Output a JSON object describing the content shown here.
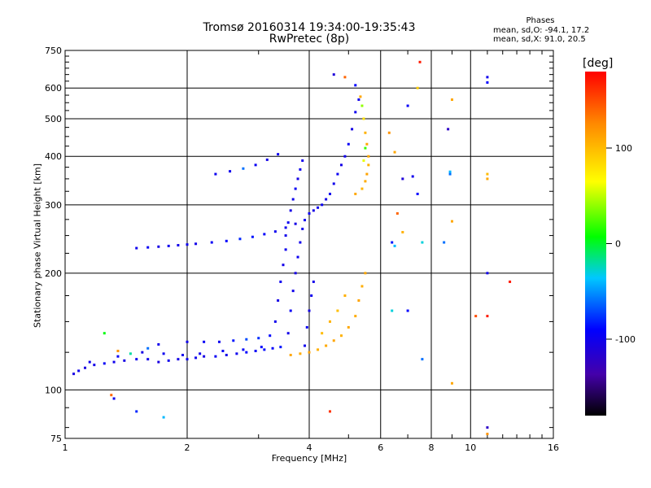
{
  "header": {
    "title_line1": "Tromsø 20160314 19:34:00-19:35:43",
    "title_line2": "RwPretec (8p)"
  },
  "stats": {
    "heading": "Phases",
    "line1": "mean, sd,O: -94.1, 17.2",
    "line2": "mean, sd,X:  91.0, 20.5"
  },
  "colorbar": {
    "label": "[deg]",
    "min": -180,
    "max": 180,
    "ticks": [
      {
        "value": 100,
        "label": "100"
      },
      {
        "value": 0,
        "label": "0"
      },
      {
        "value": -100,
        "label": "-100"
      }
    ]
  },
  "chart_data": {
    "type": "scatter",
    "xlabel": "Frequency [MHz]",
    "ylabel": "Stationary phase Virtual Height [km]",
    "xscale": "log",
    "yscale": "log",
    "xlim": [
      1,
      16
    ],
    "ylim": [
      75,
      750
    ],
    "xticks": [
      {
        "value": 1,
        "label": "1"
      },
      {
        "value": 2,
        "label": "2"
      },
      {
        "value": 4,
        "label": "4"
      },
      {
        "value": 6,
        "label": "6"
      },
      {
        "value": 8,
        "label": "8"
      },
      {
        "value": 10,
        "label": "10"
      },
      {
        "value": 16,
        "label": "16"
      }
    ],
    "yticks": [
      {
        "value": 75,
        "label": "75"
      },
      {
        "value": 100,
        "label": "100"
      },
      {
        "value": 200,
        "label": "200"
      },
      {
        "value": 300,
        "label": "300"
      },
      {
        "value": 400,
        "label": "400"
      },
      {
        "value": 500,
        "label": "500"
      },
      {
        "value": 600,
        "label": "600"
      },
      {
        "value": 750,
        "label": "750"
      }
    ],
    "grid_x": [
      2,
      4,
      6,
      8,
      10
    ],
    "grid_y": [
      100,
      200,
      300,
      400,
      500,
      600
    ],
    "minor_x": [
      3,
      5,
      7,
      9,
      11,
      12,
      13,
      14,
      15
    ],
    "minor_y": [
      80,
      90,
      125,
      150,
      175,
      225,
      250,
      275,
      325,
      350,
      375,
      425,
      450,
      475,
      525,
      550,
      575,
      625,
      650,
      675,
      700,
      725
    ],
    "series": [
      {
        "color_by": "phase_deg",
        "points": [
          [
            1.05,
            110,
            -105
          ],
          [
            1.08,
            112,
            -100
          ],
          [
            1.12,
            114,
            -108
          ],
          [
            1.18,
            116,
            -102
          ],
          [
            1.25,
            117,
            -95
          ],
          [
            1.32,
            118,
            -100
          ],
          [
            1.4,
            119,
            -104
          ],
          [
            1.5,
            120,
            -98
          ],
          [
            1.6,
            120,
            -101
          ],
          [
            1.7,
            118,
            -106
          ],
          [
            1.8,
            119,
            -99
          ],
          [
            1.9,
            120,
            -103
          ],
          [
            2.0,
            120,
            -97
          ],
          [
            2.1,
            121,
            -100
          ],
          [
            2.2,
            122,
            -105
          ],
          [
            2.35,
            122,
            -96
          ],
          [
            2.5,
            123,
            -102
          ],
          [
            2.65,
            124,
            -99
          ],
          [
            2.8,
            125,
            -90
          ],
          [
            2.95,
            126,
            -95
          ],
          [
            3.1,
            127,
            -88
          ],
          [
            3.25,
            128,
            -92
          ],
          [
            3.4,
            129,
            -85
          ],
          [
            1.15,
            118,
            -100
          ],
          [
            1.35,
            122,
            -96
          ],
          [
            1.55,
            125,
            -104
          ],
          [
            1.75,
            124,
            -98
          ],
          [
            1.95,
            123,
            -101
          ],
          [
            2.15,
            124,
            -99
          ],
          [
            2.45,
            126,
            -95
          ],
          [
            2.75,
            127,
            -93
          ],
          [
            3.05,
            129,
            -90
          ],
          [
            2.0,
            133,
            -100
          ],
          [
            2.2,
            133,
            -95
          ],
          [
            2.4,
            133,
            -98
          ],
          [
            2.6,
            134,
            -85
          ],
          [
            2.8,
            135,
            -70
          ],
          [
            3.0,
            136,
            -78
          ],
          [
            3.2,
            138,
            -88
          ],
          [
            1.35,
            126,
            120
          ],
          [
            1.45,
            124,
            -20
          ],
          [
            1.6,
            128,
            -60
          ],
          [
            1.25,
            140,
            5
          ],
          [
            1.7,
            131,
            -100
          ],
          [
            1.5,
            232,
            -100
          ],
          [
            1.6,
            233,
            -96
          ],
          [
            1.7,
            234,
            -104
          ],
          [
            1.8,
            235,
            -99
          ],
          [
            1.9,
            236,
            -101
          ],
          [
            2.0,
            237,
            -98
          ],
          [
            2.1,
            238,
            -102
          ],
          [
            2.3,
            240,
            -95
          ],
          [
            2.5,
            242,
            -90
          ],
          [
            2.7,
            245,
            -80
          ],
          [
            2.9,
            248,
            -85
          ],
          [
            3.1,
            252,
            -92
          ],
          [
            3.3,
            256,
            -98
          ],
          [
            3.5,
            262,
            -100
          ],
          [
            3.7,
            268,
            -104
          ],
          [
            3.9,
            274,
            -99
          ],
          [
            2.35,
            360,
            -98
          ],
          [
            2.55,
            366,
            -100
          ],
          [
            2.75,
            372,
            -60
          ],
          [
            2.95,
            380,
            -96
          ],
          [
            3.15,
            392,
            -103
          ],
          [
            3.35,
            405,
            -98
          ],
          [
            3.3,
            150,
            -100
          ],
          [
            3.35,
            170,
            -104
          ],
          [
            3.4,
            190,
            -98
          ],
          [
            3.45,
            210,
            -102
          ],
          [
            3.5,
            230,
            -99
          ],
          [
            3.5,
            250,
            -101
          ],
          [
            3.55,
            270,
            -97
          ],
          [
            3.6,
            290,
            -103
          ],
          [
            3.65,
            310,
            -100
          ],
          [
            3.7,
            330,
            -96
          ],
          [
            3.75,
            350,
            -104
          ],
          [
            3.8,
            370,
            -98
          ],
          [
            3.85,
            390,
            -100
          ],
          [
            3.55,
            140,
            -102
          ],
          [
            3.6,
            160,
            -95
          ],
          [
            3.65,
            180,
            -100
          ],
          [
            3.7,
            200,
            -104
          ],
          [
            3.75,
            220,
            -98
          ],
          [
            3.8,
            240,
            -101
          ],
          [
            3.85,
            260,
            -99
          ],
          [
            3.9,
            130,
            -100
          ],
          [
            3.95,
            145,
            -97
          ],
          [
            4.0,
            160,
            -103
          ],
          [
            4.05,
            175,
            -99
          ],
          [
            4.1,
            190,
            -101
          ],
          [
            4.0,
            285,
            -98
          ],
          [
            4.1,
            290,
            -104
          ],
          [
            4.2,
            295,
            -100
          ],
          [
            4.3,
            300,
            -96
          ],
          [
            4.4,
            310,
            -102
          ],
          [
            4.5,
            320,
            -99
          ],
          [
            4.6,
            340,
            -101
          ],
          [
            4.7,
            360,
            -97
          ],
          [
            4.8,
            380,
            -103
          ],
          [
            4.9,
            400,
            -100
          ],
          [
            5.0,
            430,
            -95
          ],
          [
            5.1,
            470,
            -104
          ],
          [
            5.2,
            520,
            -98
          ],
          [
            5.3,
            560,
            -102
          ],
          [
            3.6,
            123,
            110
          ],
          [
            3.8,
            124,
            108
          ],
          [
            4.0,
            125,
            112
          ],
          [
            4.2,
            127,
            106
          ],
          [
            4.4,
            130,
            109
          ],
          [
            4.6,
            134,
            111
          ],
          [
            4.8,
            138,
            105
          ],
          [
            5.0,
            145,
            110
          ],
          [
            5.2,
            155,
            108
          ],
          [
            5.3,
            170,
            112
          ],
          [
            5.4,
            185,
            107
          ],
          [
            5.5,
            200,
            110
          ],
          [
            4.3,
            140,
            100
          ],
          [
            4.5,
            150,
            104
          ],
          [
            4.7,
            160,
            98
          ],
          [
            4.9,
            175,
            106
          ],
          [
            5.2,
            320,
            110
          ],
          [
            5.4,
            330,
            104
          ],
          [
            5.5,
            345,
            108
          ],
          [
            5.55,
            360,
            112
          ],
          [
            5.6,
            380,
            106
          ],
          [
            5.6,
            400,
            109
          ],
          [
            5.55,
            430,
            111
          ],
          [
            5.5,
            460,
            105
          ],
          [
            5.45,
            500,
            80
          ],
          [
            5.4,
            540,
            40
          ],
          [
            5.35,
            570,
            110
          ],
          [
            5.5,
            420,
            20
          ],
          [
            5.45,
            390,
            60
          ],
          [
            4.6,
            650,
            -110
          ],
          [
            4.9,
            640,
            140
          ],
          [
            5.2,
            610,
            -90
          ],
          [
            7.5,
            700,
            170
          ],
          [
            7.4,
            600,
            90
          ],
          [
            7.0,
            540,
            -95
          ],
          [
            9.0,
            560,
            110
          ],
          [
            11.0,
            640,
            -100
          ],
          [
            11.0,
            620,
            -90
          ],
          [
            6.3,
            460,
            120
          ],
          [
            6.5,
            410,
            110
          ],
          [
            6.8,
            350,
            -110
          ],
          [
            7.2,
            355,
            -100
          ],
          [
            7.4,
            320,
            -90
          ],
          [
            8.8,
            470,
            -120
          ],
          [
            8.9,
            365,
            -40
          ],
          [
            8.9,
            360,
            -60
          ],
          [
            11.0,
            360,
            100
          ],
          [
            11.0,
            350,
            110
          ],
          [
            6.6,
            285,
            140
          ],
          [
            6.8,
            255,
            105
          ],
          [
            6.4,
            240,
            -85
          ],
          [
            6.5,
            235,
            -40
          ],
          [
            7.6,
            240,
            -30
          ],
          [
            8.6,
            240,
            -60
          ],
          [
            9.0,
            272,
            110
          ],
          [
            6.4,
            160,
            -30
          ],
          [
            7.0,
            160,
            -90
          ],
          [
            7.6,
            120,
            -60
          ],
          [
            10.3,
            155,
            150
          ],
          [
            11.0,
            155,
            170
          ],
          [
            11.0,
            200,
            -100
          ],
          [
            12.5,
            190,
            170
          ],
          [
            9.0,
            104,
            110
          ],
          [
            4.5,
            88,
            160
          ],
          [
            1.3,
            97,
            140
          ],
          [
            1.32,
            95,
            -100
          ],
          [
            1.5,
            88,
            -80
          ],
          [
            1.75,
            85,
            -40
          ],
          [
            11.0,
            77,
            120
          ],
          [
            11.0,
            80,
            -120
          ]
        ]
      }
    ]
  }
}
